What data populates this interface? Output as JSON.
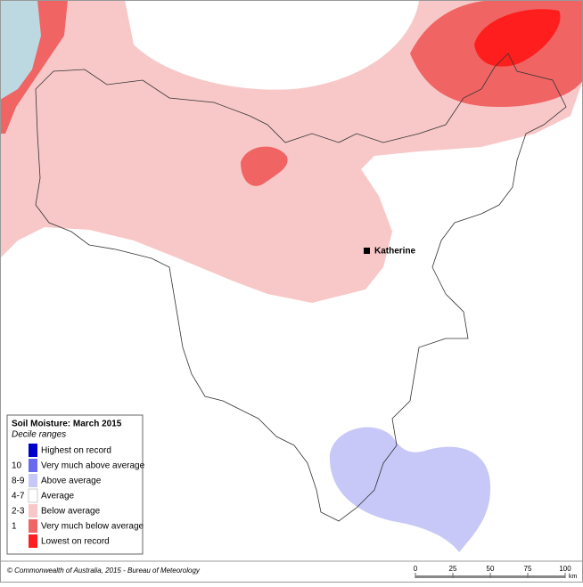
{
  "map": {
    "place": "Katherine",
    "legend": {
      "title": "Soil Moisture: March 2015",
      "subtitle": "Decile ranges",
      "items": [
        {
          "label": "Highest on record",
          "color": "#0000cc"
        },
        {
          "code": "10",
          "label": "Very much above average",
          "color": "#6a6af0"
        },
        {
          "code": "8-9",
          "label": "Above average",
          "color": "#c8c8f8"
        },
        {
          "code": "4-7",
          "label": "Average",
          "color": "#ffffff"
        },
        {
          "code": "2-3",
          "label": "Below average",
          "color": "#f8c8c8"
        },
        {
          "code": "1",
          "label": "Very much below average",
          "color": "#f06464"
        },
        {
          "label": "Lowest on record",
          "color": "#ff1e1e"
        }
      ]
    },
    "footer": {
      "credit": "© Commonwealth of Australia, 2015 - Bureau of Meteorology"
    },
    "scale": {
      "ticks": [
        0,
        25,
        50,
        75,
        100
      ],
      "unit": "km"
    }
  }
}
